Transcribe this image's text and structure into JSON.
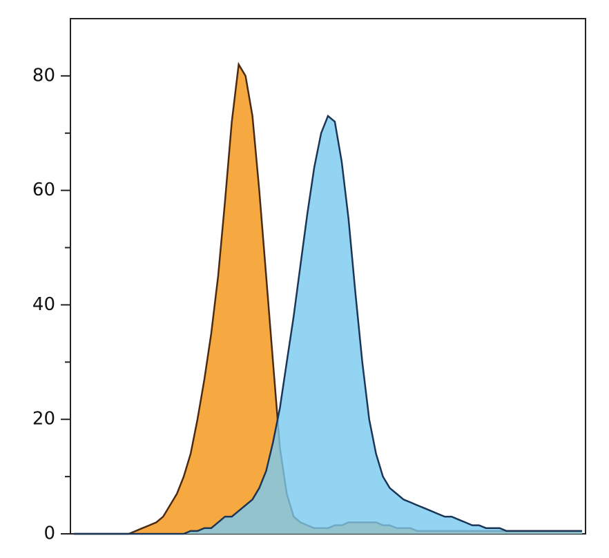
{
  "chart_data": {
    "type": "area",
    "categories": [
      null,
      null,
      null,
      null,
      null,
      null,
      null,
      null,
      null,
      null,
      null,
      null,
      null,
      null,
      null,
      null,
      null,
      null,
      null,
      null,
      null,
      null,
      null,
      null,
      null,
      null,
      null,
      null,
      null,
      null,
      null,
      null,
      null,
      null,
      null,
      null,
      null,
      null,
      null,
      null,
      null,
      null,
      null,
      null,
      null,
      null,
      null,
      null,
      null,
      null,
      null,
      null,
      null,
      null,
      null,
      null,
      null,
      null,
      null,
      null,
      null,
      null,
      null,
      null,
      null,
      null,
      null,
      null,
      null,
      null,
      null,
      null,
      null,
      null,
      null
    ],
    "series": [
      {
        "color": "#f7a941",
        "stroke": "#4a2a12",
        "values": [
          0,
          0,
          0,
          0,
          0,
          0,
          0,
          0,
          0,
          0.5,
          1,
          1.5,
          2,
          3,
          5,
          7,
          10,
          14,
          20,
          27,
          35,
          45,
          58,
          72,
          82,
          80,
          73,
          60,
          45,
          30,
          15,
          7,
          3,
          2,
          1.5,
          1,
          1,
          1,
          1.5,
          1.5,
          2,
          2,
          2,
          2,
          2,
          1.5,
          1.5,
          1,
          1,
          1,
          0.5,
          0.5,
          0.5,
          0.5,
          0.5,
          0.5,
          0.5,
          0.5,
          0.5,
          0.5,
          0.5,
          0.5,
          0.5,
          0.5,
          0.5,
          0.5,
          0.5,
          0.5,
          0.5,
          0.5,
          0.5,
          0.5,
          0.5,
          0.5,
          0.5
        ]
      },
      {
        "color": "#79c9f0",
        "stroke": "#1a3555",
        "values": [
          0,
          0,
          0,
          0,
          0,
          0,
          0,
          0,
          0,
          0,
          0,
          0,
          0,
          0,
          0,
          0,
          0,
          0.5,
          0.5,
          1,
          1,
          2,
          3,
          3,
          4,
          5,
          6,
          8,
          11,
          16,
          22,
          30,
          38,
          47,
          56,
          64,
          70,
          73,
          72,
          65,
          55,
          42,
          30,
          20,
          14,
          10,
          8,
          7,
          6,
          5.5,
          5,
          4.5,
          4,
          3.5,
          3,
          3,
          2.5,
          2,
          1.5,
          1.5,
          1,
          1,
          1,
          0.5,
          0.5,
          0.5,
          0.5,
          0.5,
          0.5,
          0.5,
          0.5,
          0.5,
          0.5,
          0.5,
          0.5
        ]
      }
    ],
    "ylim": [
      0,
      90
    ],
    "yticks": [
      0,
      20,
      40,
      60,
      80
    ],
    "yminorticks": [
      10,
      30,
      50,
      70
    ]
  }
}
